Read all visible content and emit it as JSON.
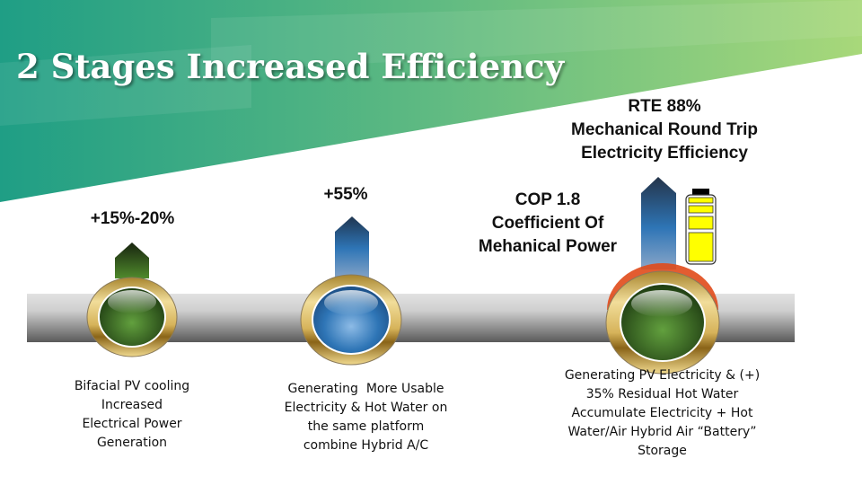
{
  "slide": {
    "title": "2 Stages Increased Efficiency",
    "colors": {
      "header_start": "#2aa58a",
      "header_end": "#a6d77a",
      "pipe": "#9a9a9a",
      "stage1": "#3f6e25",
      "stage2": "#2e75b6",
      "gold_ring": "#c9a23f",
      "battery_fill": "#ffff00"
    },
    "stages": [
      {
        "value": "+15%-20%",
        "description": [
          "Bifacial PV cooling",
          "Increased",
          "Electrical Power",
          "Generation"
        ]
      },
      {
        "value": "+55%",
        "description": [
          "Generating  More Usable",
          "Electricity & Hot Water on",
          "the same platform",
          "combine Hybrid A/C"
        ]
      },
      {
        "value_lines": [
          "RTE 88%",
          "Mechanical Round Trip",
          "Electricity Efficiency"
        ],
        "secondary_lines": [
          "COP 1.8",
          "Coefficient Of",
          "Mehanical Power"
        ],
        "description": [
          "Generating PV Electricity & (+)",
          "35% Residual Hot Water",
          "Accumulate Electricity + Hot",
          "Water/Air Hybrid Air “Battery”",
          "Storage"
        ]
      }
    ],
    "icons": [
      "up-arrow-icon",
      "battery-icon"
    ]
  }
}
